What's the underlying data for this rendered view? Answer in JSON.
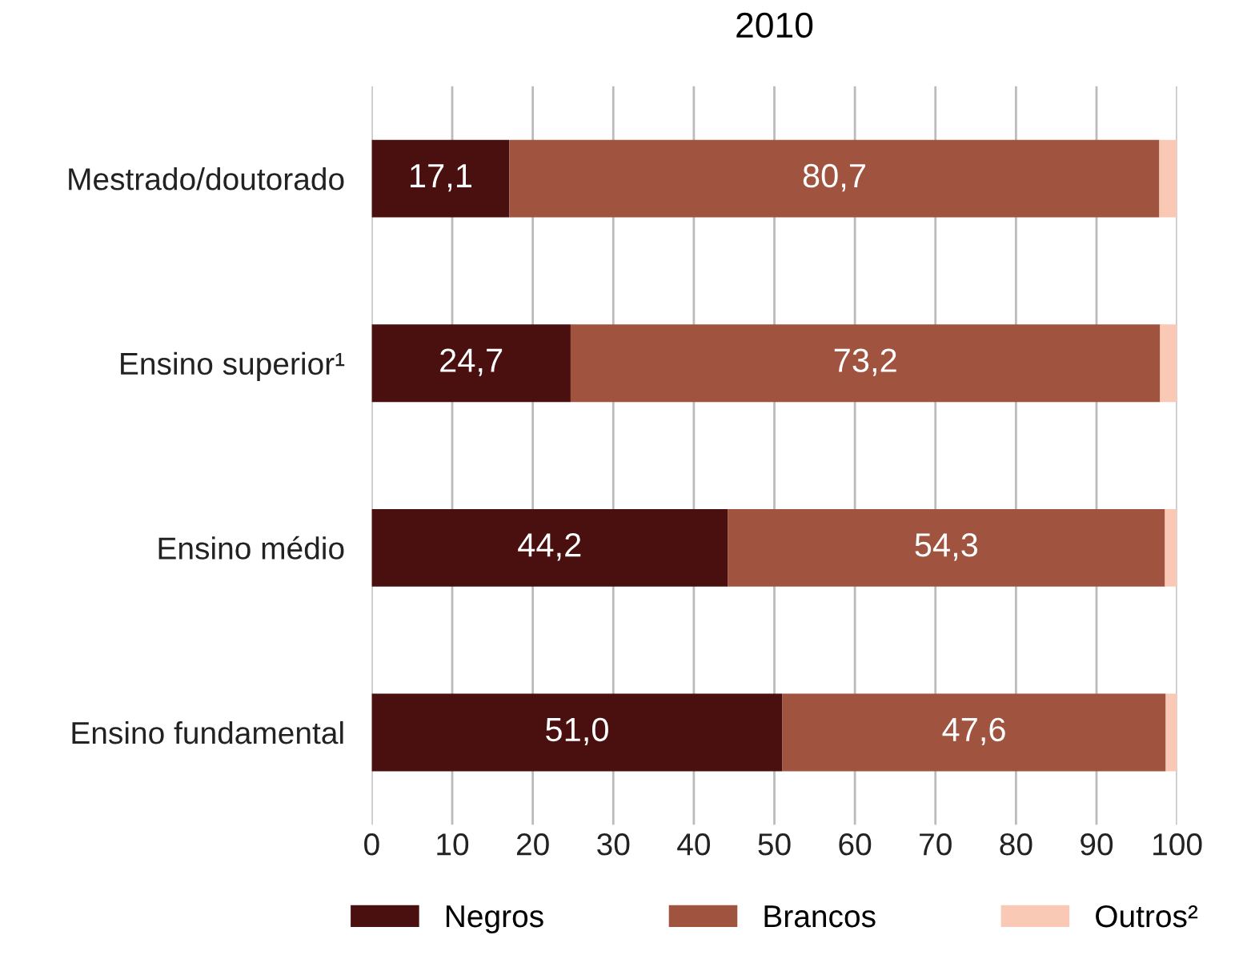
{
  "chart_data": {
    "type": "bar",
    "orientation": "horizontal",
    "stacked": true,
    "title": "2010",
    "categories": [
      "Mestrado/doutorado",
      "Ensino superior¹",
      "Ensino médio",
      "Ensino fundamental"
    ],
    "series": [
      {
        "name": "Negros",
        "color": "#4a0f0f",
        "values": [
          17.1,
          24.7,
          44.2,
          51.0
        ],
        "value_labels": [
          "17,1",
          "24,7",
          "44,2",
          "51,0"
        ]
      },
      {
        "name": "Brancos",
        "color": "#a0533f",
        "values": [
          80.7,
          73.2,
          54.3,
          47.6
        ],
        "value_labels": [
          "80,7",
          "73,2",
          "54,3",
          "47,6"
        ]
      },
      {
        "name": "Outros²",
        "color": "#f9c9b5",
        "values": [
          2.2,
          2.1,
          1.5,
          1.4
        ]
      }
    ],
    "xlim": [
      0,
      100
    ],
    "xticks": [
      0,
      10,
      20,
      30,
      40,
      50,
      60,
      70,
      80,
      90,
      100
    ],
    "grid": "x",
    "legend": "bottom"
  }
}
